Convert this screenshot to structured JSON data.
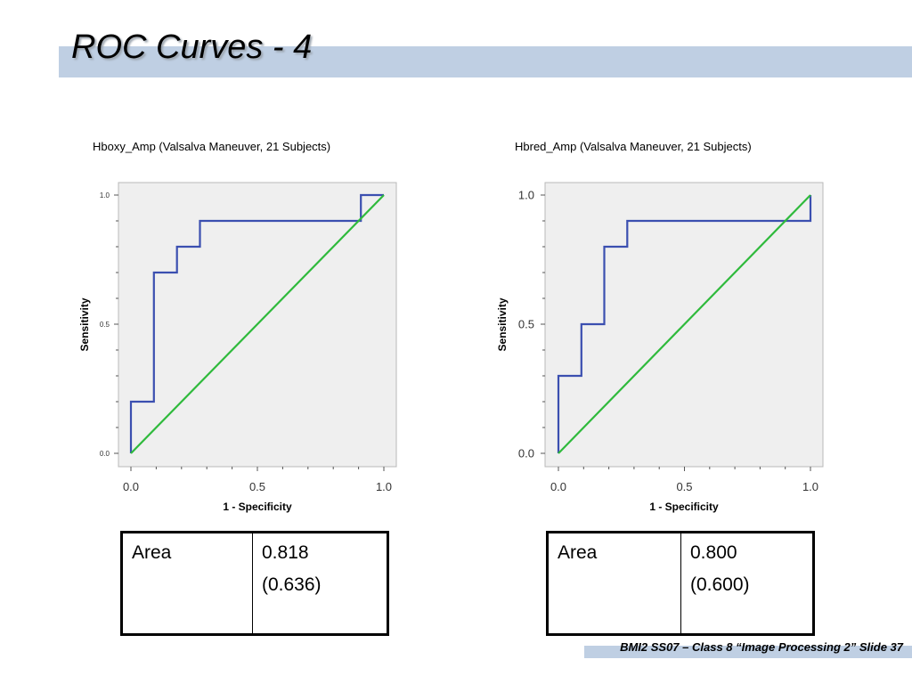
{
  "slide": {
    "title": "ROC Curves - 4",
    "footer": "BMI2 SS07 – Class 8 “Image Processing 2” Slide 37",
    "colors": {
      "title_bar": "#bfcfe3",
      "roc_line": "#3b4fb0",
      "reference_line": "#2fba3c",
      "plot_bg": "#efefef"
    }
  },
  "chart_data": [
    {
      "type": "line",
      "title": "Hboxy_Amp (Valsalva Maneuver, 21 Subjects)",
      "xlabel": "1 - Specificity",
      "ylabel": "Sensitivity",
      "xlim": [
        0,
        1
      ],
      "ylim": [
        0,
        1
      ],
      "xticks": [
        "0.0",
        "0.5",
        "1.0"
      ],
      "yticks": [
        "0.0",
        "0.5",
        "1.0"
      ],
      "grid": false,
      "series": [
        {
          "x": [
            0,
            0,
            0.091,
            0.091,
            0.182,
            0.182,
            0.273,
            0.273,
            0.909,
            0.909,
            1.0
          ],
          "y": [
            0,
            0.2,
            0.2,
            0.7,
            0.7,
            0.8,
            0.8,
            0.9,
            0.9,
            1.0,
            1.0
          ]
        },
        {
          "x": [
            0,
            1
          ],
          "y": [
            0,
            1
          ]
        }
      ],
      "table": {
        "label": "Area",
        "value": "0.818",
        "se": "(0.636)"
      }
    },
    {
      "type": "line",
      "title": "Hbred_Amp (Valsalva Maneuver, 21 Subjects)",
      "xlabel": "1 - Specificity",
      "ylabel": "Sensitivity",
      "xlim": [
        0,
        1
      ],
      "ylim": [
        0,
        1
      ],
      "xticks": [
        "0.0",
        "0.5",
        "1.0"
      ],
      "yticks": [
        "0.0",
        "0.5",
        "1.0"
      ],
      "grid": false,
      "series": [
        {
          "x": [
            0,
            0,
            0.091,
            0.091,
            0.182,
            0.182,
            0.273,
            0.273,
            1.0,
            1.0
          ],
          "y": [
            0,
            0.3,
            0.3,
            0.5,
            0.5,
            0.8,
            0.8,
            0.9,
            0.9,
            1.0
          ]
        },
        {
          "x": [
            0,
            1
          ],
          "y": [
            0,
            1
          ]
        }
      ],
      "table": {
        "label": "Area",
        "value": "0.800",
        "se": "(0.600)"
      }
    }
  ]
}
